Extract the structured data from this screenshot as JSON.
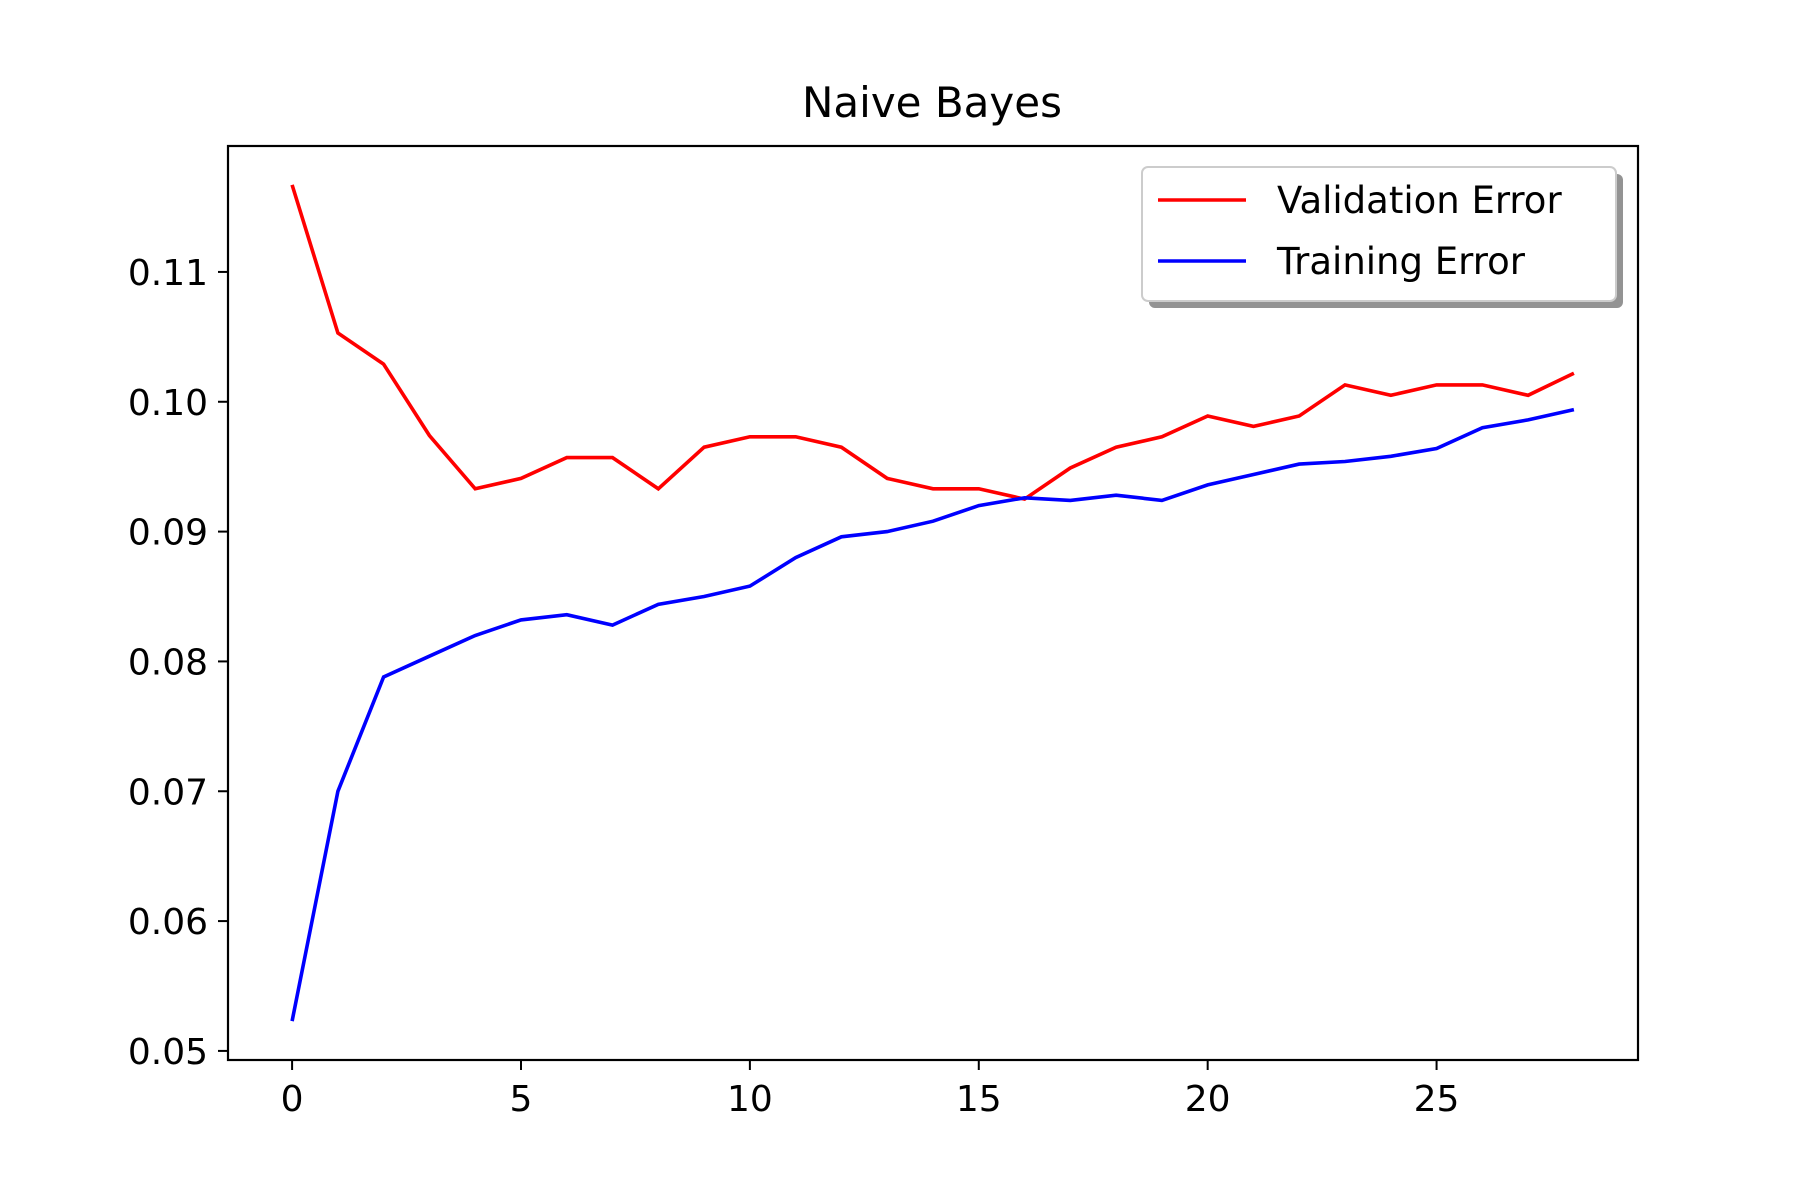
{
  "chart_data": {
    "type": "line",
    "title": "Naive Bayes",
    "xlabel": "",
    "ylabel": "",
    "x": [
      0,
      1,
      2,
      3,
      4,
      5,
      6,
      7,
      8,
      9,
      10,
      11,
      12,
      13,
      14,
      15,
      16,
      17,
      18,
      19,
      20,
      21,
      22,
      23,
      24,
      25,
      26,
      27,
      28
    ],
    "series": [
      {
        "name": "Validation Error",
        "color": "#ff0000",
        "values": [
          0.1167,
          0.1053,
          0.1029,
          0.0974,
          0.0933,
          0.0941,
          0.0957,
          0.0957,
          0.0933,
          0.0965,
          0.0973,
          0.0973,
          0.0965,
          0.0941,
          0.0933,
          0.0933,
          0.0925,
          0.0949,
          0.0965,
          0.0973,
          0.0989,
          0.0981,
          0.0989,
          0.1013,
          0.1005,
          0.1013,
          0.1013,
          0.1005,
          0.1022
        ]
      },
      {
        "name": "Training Error",
        "color": "#0000ff",
        "values": [
          0.0523,
          0.07,
          0.0788,
          0.0804,
          0.082,
          0.0832,
          0.0836,
          0.0828,
          0.0844,
          0.085,
          0.0858,
          0.088,
          0.0896,
          0.09,
          0.0908,
          0.092,
          0.0926,
          0.0924,
          0.0928,
          0.0924,
          0.0936,
          0.0944,
          0.0952,
          0.0954,
          0.0958,
          0.0964,
          0.098,
          0.0986,
          0.0994
        ]
      }
    ],
    "xlim": [
      -1.4,
      29.4
    ],
    "ylim": [
      0.0493,
      0.1197
    ],
    "xticks": [
      0,
      5,
      10,
      15,
      20,
      25
    ],
    "xtick_labels": [
      "0",
      "5",
      "10",
      "15",
      "20",
      "25"
    ],
    "yticks": [
      0.05,
      0.06,
      0.07,
      0.08,
      0.09,
      0.1,
      0.11
    ],
    "ytick_labels": [
      "0.05",
      "0.06",
      "0.07",
      "0.08",
      "0.09",
      "0.10",
      "0.11"
    ],
    "grid": false,
    "legend_position": "top-right"
  }
}
